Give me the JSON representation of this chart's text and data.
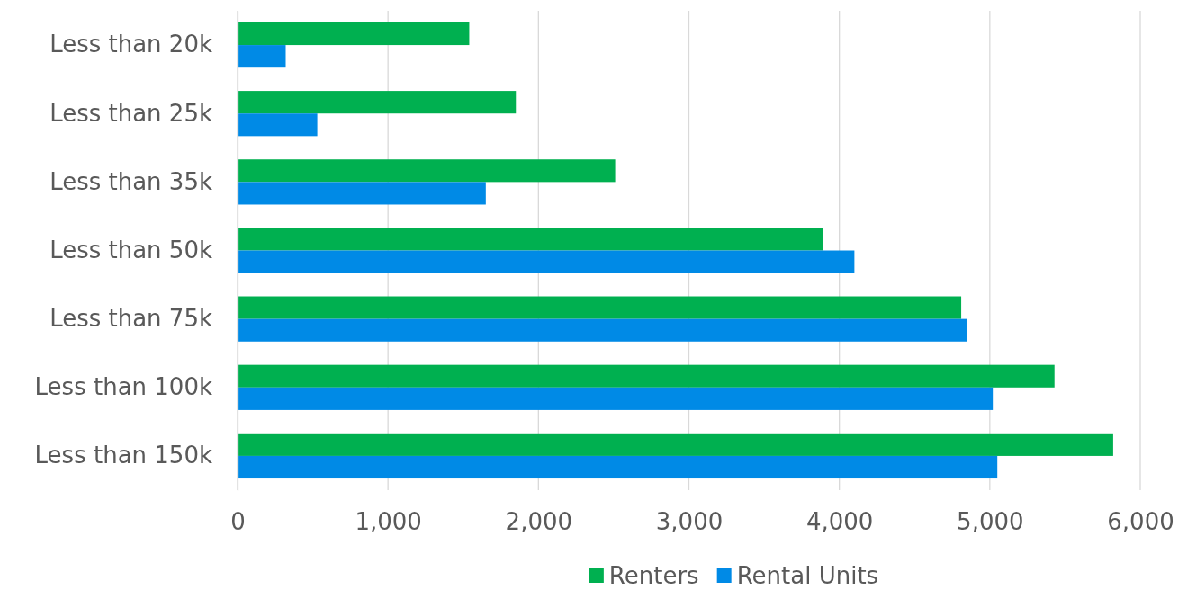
{
  "chart_data": {
    "type": "bar",
    "orientation": "horizontal",
    "categories": [
      "Less than 20k",
      "Less than 25k",
      "Less than 35k",
      "Less than 50k",
      "Less than 75k",
      "Less than 100k",
      "Less than 150k"
    ],
    "series": [
      {
        "name": "Renters",
        "color": "#00b050",
        "values": [
          1540,
          1850,
          2510,
          3890,
          4810,
          5430,
          5820
        ]
      },
      {
        "name": "Rental Units",
        "color": "#008ae6",
        "values": [
          320,
          530,
          1650,
          4100,
          4850,
          5020,
          5050
        ]
      }
    ],
    "xlim": [
      0,
      6000
    ],
    "xticks": [
      0,
      {
        "value": 1000,
        "label": "1,000"
      },
      {
        "value": 2000,
        "label": "2,000"
      },
      {
        "value": 3000,
        "label": "3,000"
      },
      {
        "value": 4000,
        "label": "4,000"
      },
      {
        "value": 5000,
        "label": "5,000"
      },
      {
        "value": 6000,
        "label": "6,000"
      }
    ],
    "grid": "x",
    "legend": "bottom"
  }
}
